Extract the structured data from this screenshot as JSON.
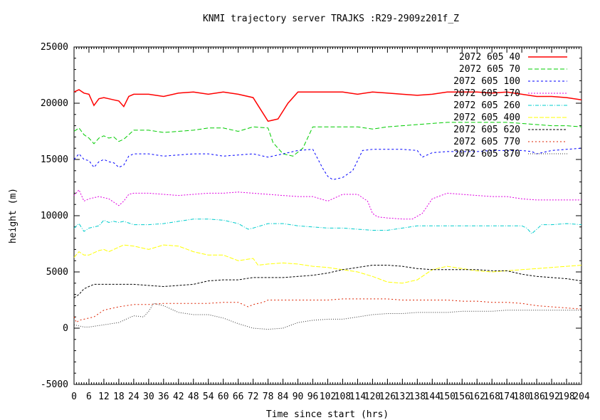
{
  "chart_data": {
    "type": "line",
    "title": "KNMI trajectory server TRAJKS :R29-2909z201f_Z",
    "xlabel": "Time since start (hrs)",
    "ylabel": "height (m)",
    "xlim": [
      0,
      204
    ],
    "ylim": [
      -5000,
      25000
    ],
    "xticks": [
      "0",
      "6",
      "12",
      "18",
      "24",
      "30",
      "36",
      "42",
      "48",
      "54",
      "60",
      "66",
      "72",
      "78",
      "84",
      "90",
      "96",
      "102",
      "108",
      "114",
      "120",
      "126",
      "132",
      "138",
      "144",
      "150",
      "156",
      "162",
      "168",
      "174",
      "180",
      "186",
      "192",
      "198",
      "204"
    ],
    "yticks": [
      "-5000",
      "0",
      "5000",
      "10000",
      "15000",
      "20000",
      "25000"
    ],
    "legend_position": "top-right",
    "series": [
      {
        "name": "2072 605 40",
        "color": "#ff0000",
        "x": [
          0,
          2,
          4,
          6,
          8,
          10,
          12,
          14,
          16,
          18,
          20,
          22,
          24,
          30,
          36,
          42,
          48,
          54,
          60,
          66,
          72,
          74,
          78,
          82,
          86,
          90,
          96,
          102,
          108,
          114,
          120,
          126,
          132,
          138,
          144,
          150,
          156,
          162,
          168,
          174,
          180,
          186,
          192,
          198,
          204
        ],
        "y": [
          21000,
          21200,
          20900,
          20800,
          19800,
          20400,
          20500,
          20400,
          20300,
          20200,
          19700,
          20600,
          20800,
          20800,
          20600,
          20900,
          21000,
          20800,
          21000,
          20800,
          20500,
          19800,
          18400,
          18600,
          20000,
          21000,
          21000,
          21000,
          21000,
          20800,
          21000,
          20900,
          20800,
          20700,
          20800,
          21000,
          21000,
          21000,
          20900,
          21000,
          20800,
          20600,
          20600,
          20500,
          20300
        ]
      },
      {
        "name": "2072 605 70",
        "color": "#00cc00",
        "x": [
          0,
          2,
          4,
          6,
          8,
          10,
          12,
          14,
          16,
          18,
          20,
          24,
          30,
          36,
          42,
          48,
          54,
          60,
          66,
          72,
          78,
          80,
          84,
          88,
          92,
          96,
          102,
          108,
          114,
          120,
          126,
          132,
          138,
          144,
          150,
          156,
          162,
          168,
          174,
          180,
          186,
          192,
          198,
          204
        ],
        "y": [
          17500,
          17800,
          17200,
          16900,
          16400,
          16900,
          17100,
          16900,
          17000,
          16600,
          16800,
          17600,
          17600,
          17400,
          17500,
          17600,
          17800,
          17800,
          17500,
          17900,
          17800,
          16500,
          15500,
          15300,
          16000,
          17900,
          17900,
          17900,
          17900,
          17700,
          17900,
          18000,
          18100,
          18200,
          18300,
          18300,
          18300,
          18300,
          18300,
          18200,
          18100,
          18000,
          18000,
          17900
        ]
      },
      {
        "name": "2072 605 100",
        "color": "#0000ff",
        "x": [
          0,
          2,
          4,
          6,
          8,
          10,
          12,
          14,
          16,
          18,
          20,
          22,
          24,
          30,
          36,
          42,
          48,
          54,
          60,
          66,
          72,
          78,
          84,
          90,
          96,
          100,
          102,
          104,
          108,
          112,
          116,
          120,
          126,
          132,
          138,
          140,
          144,
          150,
          156,
          162,
          168,
          174,
          180,
          184,
          186,
          192,
          198,
          204
        ],
        "y": [
          15000,
          15500,
          15000,
          14900,
          14300,
          14800,
          15000,
          14800,
          14700,
          14300,
          14500,
          15300,
          15500,
          15500,
          15300,
          15400,
          15500,
          15500,
          15300,
          15400,
          15500,
          15200,
          15500,
          15800,
          15900,
          14200,
          13500,
          13200,
          13400,
          14000,
          15800,
          15900,
          15900,
          15900,
          15800,
          15200,
          15600,
          15700,
          15700,
          15700,
          15800,
          15800,
          15800,
          15700,
          15500,
          15800,
          15900,
          16000
        ]
      },
      {
        "name": "2072 605 170",
        "color": "#e000e0",
        "x": [
          0,
          2,
          4,
          6,
          8,
          10,
          12,
          14,
          16,
          18,
          20,
          22,
          24,
          30,
          36,
          42,
          48,
          54,
          60,
          66,
          72,
          78,
          84,
          90,
          96,
          102,
          108,
          114,
          118,
          120,
          122,
          126,
          132,
          136,
          140,
          144,
          150,
          156,
          162,
          168,
          174,
          180,
          186,
          192,
          198,
          204
        ],
        "y": [
          11800,
          12300,
          11300,
          11500,
          11600,
          11700,
          11600,
          11500,
          11200,
          10900,
          11300,
          11900,
          12000,
          12000,
          11900,
          11800,
          11900,
          12000,
          12000,
          12100,
          12000,
          11900,
          11800,
          11700,
          11700,
          11300,
          11900,
          11900,
          11300,
          10200,
          9900,
          9800,
          9700,
          9700,
          10200,
          11500,
          12000,
          11900,
          11800,
          11700,
          11700,
          11500,
          11400,
          11400,
          11400,
          11400
        ]
      },
      {
        "name": "2072 605 260",
        "color": "#00cccc",
        "x": [
          0,
          2,
          4,
          6,
          8,
          10,
          12,
          14,
          16,
          18,
          20,
          24,
          30,
          36,
          42,
          48,
          54,
          60,
          66,
          70,
          72,
          78,
          84,
          90,
          96,
          102,
          108,
          114,
          120,
          126,
          132,
          138,
          144,
          150,
          156,
          162,
          168,
          174,
          180,
          182,
          184,
          186,
          188,
          192,
          198,
          204
        ],
        "y": [
          8900,
          9300,
          8600,
          8900,
          9000,
          9100,
          9600,
          9400,
          9500,
          9400,
          9500,
          9200,
          9200,
          9300,
          9500,
          9700,
          9700,
          9600,
          9300,
          8800,
          8900,
          9300,
          9300,
          9100,
          9000,
          8900,
          8900,
          8800,
          8700,
          8700,
          8900,
          9100,
          9100,
          9100,
          9100,
          9100,
          9100,
          9100,
          9100,
          8900,
          8400,
          8800,
          9200,
          9200,
          9300,
          9200
        ]
      },
      {
        "name": "2072 605 400",
        "color": "#ffff00",
        "x": [
          0,
          2,
          4,
          6,
          8,
          10,
          12,
          14,
          16,
          18,
          20,
          24,
          30,
          36,
          42,
          48,
          54,
          60,
          66,
          72,
          74,
          78,
          84,
          90,
          96,
          102,
          108,
          114,
          120,
          126,
          132,
          138,
          144,
          150,
          156,
          162,
          168,
          174,
          180,
          186,
          192,
          198,
          204
        ],
        "y": [
          6300,
          6800,
          6500,
          6500,
          6700,
          6900,
          7000,
          6800,
          7000,
          7200,
          7400,
          7300,
          7000,
          7400,
          7300,
          6800,
          6500,
          6500,
          6000,
          6200,
          5600,
          5700,
          5800,
          5700,
          5500,
          5400,
          5200,
          5000,
          4600,
          4100,
          4000,
          4300,
          5200,
          5500,
          5300,
          5100,
          5000,
          5100,
          5200,
          5300,
          5400,
          5500,
          5600
        ]
      },
      {
        "name": "2072 605 620",
        "color": "#000000",
        "x": [
          0,
          2,
          4,
          6,
          8,
          12,
          18,
          24,
          30,
          36,
          42,
          48,
          54,
          60,
          66,
          72,
          78,
          84,
          90,
          96,
          102,
          108,
          114,
          120,
          126,
          132,
          138,
          144,
          150,
          156,
          162,
          168,
          174,
          180,
          186,
          192,
          198,
          204
        ],
        "y": [
          2700,
          3000,
          3500,
          3700,
          3900,
          3900,
          3900,
          3900,
          3800,
          3700,
          3800,
          3900,
          4200,
          4300,
          4300,
          4500,
          4500,
          4500,
          4600,
          4700,
          4900,
          5200,
          5400,
          5600,
          5600,
          5500,
          5300,
          5200,
          5200,
          5200,
          5200,
          5100,
          5100,
          4800,
          4600,
          4500,
          4400,
          4200
        ]
      },
      {
        "name": "2072 605 770",
        "color": "#dd2200",
        "x": [
          0,
          1,
          2,
          4,
          6,
          8,
          12,
          18,
          24,
          30,
          36,
          42,
          48,
          54,
          60,
          66,
          70,
          72,
          76,
          78,
          84,
          90,
          96,
          102,
          108,
          114,
          120,
          126,
          132,
          138,
          144,
          150,
          156,
          162,
          168,
          174,
          180,
          186,
          192,
          198,
          204
        ],
        "y": [
          1000,
          500,
          700,
          800,
          900,
          1000,
          1600,
          1900,
          2100,
          2100,
          2200,
          2200,
          2200,
          2200,
          2300,
          2300,
          1900,
          2100,
          2300,
          2500,
          2500,
          2500,
          2500,
          2500,
          2600,
          2600,
          2600,
          2600,
          2500,
          2500,
          2500,
          2500,
          2400,
          2400,
          2300,
          2300,
          2200,
          2000,
          1900,
          1800,
          1700
        ]
      },
      {
        "name": "2072 605 870",
        "color": "#333333",
        "x": [
          0,
          2,
          4,
          6,
          12,
          18,
          20,
          24,
          28,
          30,
          32,
          36,
          42,
          48,
          54,
          60,
          66,
          72,
          78,
          84,
          90,
          96,
          102,
          108,
          114,
          120,
          126,
          132,
          138,
          144,
          150,
          156,
          162,
          168,
          174,
          180,
          186,
          192,
          198,
          204
        ],
        "y": [
          300,
          200,
          100,
          100,
          300,
          500,
          700,
          1100,
          1000,
          1500,
          2200,
          2000,
          1400,
          1200,
          1200,
          900,
          400,
          0,
          -100,
          0,
          500,
          700,
          800,
          800,
          1000,
          1200,
          1300,
          1300,
          1400,
          1400,
          1400,
          1500,
          1500,
          1500,
          1600,
          1600,
          1600,
          1600,
          1600,
          1600
        ]
      }
    ]
  }
}
